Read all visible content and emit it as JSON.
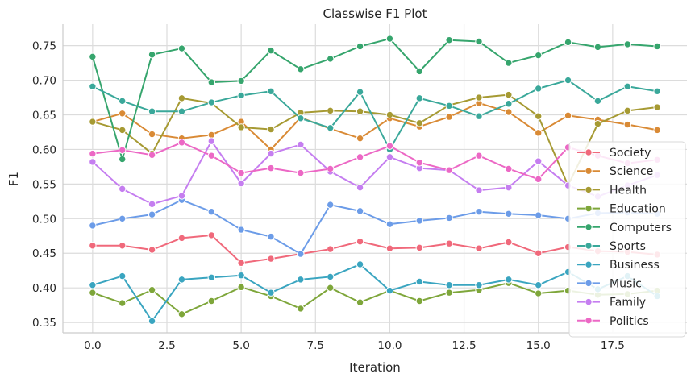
{
  "chart_data": {
    "type": "line",
    "title": "Classwise F1 Plot",
    "xlabel": "Iteration",
    "ylabel": "F1",
    "xlim": [
      -1,
      20
    ],
    "ylim": [
      0.335,
      0.781
    ],
    "xticks": [
      0,
      2.5,
      5,
      7.5,
      10,
      12.5,
      15,
      17.5
    ],
    "xtick_labels": [
      "0.0",
      "2.5",
      "5.0",
      "7.5",
      "10.0",
      "12.5",
      "15.0",
      "17.5"
    ],
    "yticks": [
      0.35,
      0.4,
      0.45,
      0.5,
      0.55,
      0.6,
      0.65,
      0.7,
      0.75
    ],
    "ytick_labels": [
      "0.35",
      "0.40",
      "0.45",
      "0.50",
      "0.55",
      "0.60",
      "0.65",
      "0.70",
      "0.75"
    ],
    "grid": true,
    "legend_position": "lower-right",
    "x": [
      0,
      1,
      2,
      3,
      4,
      5,
      6,
      7,
      8,
      9,
      10,
      11,
      12,
      13,
      14,
      15,
      16,
      17,
      18,
      19
    ],
    "series": [
      {
        "name": "Society",
        "color": "#f0697b",
        "values": [
          0.461,
          0.461,
          0.455,
          0.472,
          0.476,
          0.436,
          0.442,
          0.449,
          0.456,
          0.467,
          0.457,
          0.458,
          0.464,
          0.457,
          0.466,
          0.45,
          0.459,
          0.453,
          0.452,
          0.448
        ]
      },
      {
        "name": "Science",
        "color": "#d98a35",
        "values": [
          0.64,
          0.652,
          0.622,
          0.616,
          0.621,
          0.64,
          0.6,
          0.646,
          0.63,
          0.616,
          0.645,
          0.633,
          0.647,
          0.667,
          0.654,
          0.624,
          0.649,
          0.643,
          0.636,
          0.628
        ]
      },
      {
        "name": "Health",
        "color": "#a69a33",
        "values": [
          0.64,
          0.628,
          0.594,
          0.674,
          0.667,
          0.632,
          0.629,
          0.653,
          0.656,
          0.655,
          0.65,
          0.638,
          0.664,
          0.675,
          0.679,
          0.648,
          0.548,
          0.637,
          0.656,
          0.661
        ]
      },
      {
        "name": "Education",
        "color": "#7ea63a",
        "values": [
          0.393,
          0.378,
          0.397,
          0.362,
          0.381,
          0.401,
          0.388,
          0.37,
          0.4,
          0.379,
          0.396,
          0.381,
          0.393,
          0.397,
          0.407,
          0.392,
          0.396,
          0.39,
          0.391,
          0.396
        ]
      },
      {
        "name": "Computers",
        "color": "#36a56d",
        "values": [
          0.734,
          0.586,
          0.737,
          0.746,
          0.697,
          0.699,
          0.743,
          0.716,
          0.731,
          0.749,
          0.76,
          0.713,
          0.758,
          0.756,
          0.725,
          0.736,
          0.755,
          0.748,
          0.752,
          0.749
        ]
      },
      {
        "name": "Sports",
        "color": "#3aa89a",
        "values": [
          0.691,
          0.67,
          0.655,
          0.655,
          0.668,
          0.678,
          0.684,
          0.645,
          0.631,
          0.683,
          0.6,
          0.674,
          0.663,
          0.648,
          0.666,
          0.688,
          0.7,
          0.67,
          0.691,
          0.684
        ]
      },
      {
        "name": "Business",
        "color": "#3aa5c0",
        "values": [
          0.404,
          0.417,
          0.352,
          0.412,
          0.415,
          0.418,
          0.393,
          0.412,
          0.416,
          0.434,
          0.396,
          0.409,
          0.404,
          0.404,
          0.412,
          0.404,
          0.423,
          0.398,
          0.417,
          0.388
        ]
      },
      {
        "name": "Music",
        "color": "#6c9ce8",
        "values": [
          0.49,
          0.5,
          0.506,
          0.527,
          0.51,
          0.484,
          0.474,
          0.449,
          0.52,
          0.511,
          0.492,
          0.497,
          0.501,
          0.51,
          0.507,
          0.505,
          0.5,
          0.508,
          0.509,
          0.507
        ]
      },
      {
        "name": "Family",
        "color": "#c57ef0",
        "values": [
          0.582,
          0.543,
          0.521,
          0.533,
          0.612,
          0.551,
          0.594,
          0.607,
          0.568,
          0.545,
          0.589,
          0.573,
          0.57,
          0.541,
          0.545,
          0.583,
          0.548,
          0.532,
          0.548,
          0.563
        ]
      },
      {
        "name": "Politics",
        "color": "#ec68c5",
        "values": [
          0.594,
          0.599,
          0.592,
          0.61,
          0.591,
          0.566,
          0.573,
          0.566,
          0.572,
          0.589,
          0.605,
          0.581,
          0.57,
          0.591,
          0.572,
          0.557,
          0.603,
          0.591,
          0.58,
          0.585
        ]
      }
    ]
  }
}
